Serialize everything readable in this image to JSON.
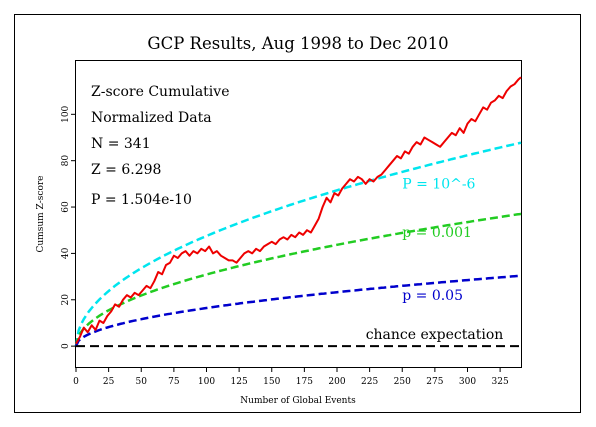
{
  "chart_data": {
    "type": "line",
    "title": "GCP Results, Aug 1998 to Dec 2010",
    "xlabel": "Number of Global Events",
    "ylabel": "Cumsum Z-score",
    "xlim": [
      0,
      341
    ],
    "ylim": [
      -9,
      123
    ],
    "x_ticks": [
      0,
      25,
      50,
      75,
      100,
      125,
      150,
      175,
      200,
      225,
      250,
      275,
      300,
      325
    ],
    "y_ticks": [
      0,
      20,
      40,
      60,
      80,
      100
    ],
    "grid": false,
    "legend": "none",
    "stats": {
      "heading": "Z-score Cumulative",
      "subheading": "Normalized Data",
      "n_text": "N = 341",
      "z_text": "Z = 6.298",
      "p_text": "P = 1.504e-10"
    },
    "reference_curves": [
      {
        "label": "P = 10^-6",
        "color": "#00e5ee",
        "coefficient": 4.753,
        "label_x": 250,
        "label_y": 68
      },
      {
        "label": "p = 0.001",
        "color": "#22cc22",
        "coefficient": 3.09,
        "label_x": 250,
        "label_y": 47
      },
      {
        "label": "p = 0.05",
        "color": "#0000cc",
        "coefficient": 1.645,
        "label_x": 250,
        "label_y": 20
      },
      {
        "label": "chance expectation",
        "color": "#000000",
        "coefficient": 0,
        "label_x": 222,
        "label_y": 3
      }
    ],
    "series": [
      {
        "color": "#ee0000",
        "x": [
          0,
          3,
          6,
          9,
          12,
          15,
          18,
          21,
          24,
          27,
          30,
          33,
          36,
          39,
          42,
          45,
          48,
          51,
          54,
          57,
          60,
          63,
          66,
          69,
          72,
          75,
          78,
          81,
          84,
          87,
          90,
          93,
          96,
          99,
          102,
          105,
          108,
          111,
          114,
          117,
          120,
          123,
          126,
          129,
          132,
          135,
          138,
          141,
          144,
          147,
          150,
          153,
          156,
          159,
          162,
          165,
          168,
          171,
          174,
          177,
          180,
          183,
          186,
          189,
          192,
          195,
          198,
          201,
          204,
          207,
          210,
          213,
          216,
          219,
          222,
          225,
          228,
          231,
          234,
          237,
          240,
          243,
          246,
          249,
          252,
          255,
          258,
          261,
          264,
          267,
          270,
          273,
          276,
          279,
          282,
          285,
          288,
          291,
          294,
          297,
          300,
          303,
          306,
          309,
          312,
          315,
          318,
          321,
          324,
          327,
          330,
          333,
          336,
          339,
          341
        ],
        "values": [
          1,
          4,
          8,
          6,
          9,
          7,
          11,
          10,
          13,
          15,
          18,
          17,
          20,
          22,
          21,
          23,
          22,
          24,
          26,
          25,
          28,
          32,
          31,
          35,
          36,
          39,
          38,
          40,
          41,
          39,
          41,
          40,
          42,
          41,
          43,
          40,
          41,
          39,
          38,
          37,
          37,
          36,
          38,
          40,
          41,
          40,
          42,
          41,
          43,
          44,
          45,
          44,
          46,
          47,
          46,
          48,
          47,
          49,
          48,
          50,
          49,
          52,
          55,
          60,
          64,
          62,
          66,
          65,
          68,
          70,
          72,
          71,
          73,
          72,
          70,
          72,
          71,
          73,
          74,
          76,
          78,
          80,
          82,
          81,
          84,
          83,
          86,
          88,
          87,
          90,
          89,
          88,
          87,
          86,
          88,
          90,
          92,
          91,
          94,
          92,
          96,
          98,
          97,
          100,
          103,
          102,
          105,
          106,
          108,
          107,
          110,
          112,
          113,
          115,
          116
        ]
      }
    ]
  }
}
